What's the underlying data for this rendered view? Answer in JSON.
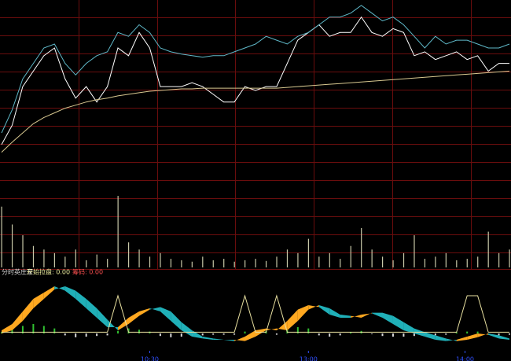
{
  "chart_data": [
    {
      "type": "line",
      "xlim": [
        0,
        240
      ],
      "ylim": [
        0,
        230
      ],
      "x": [
        0,
        5,
        10,
        15,
        20,
        25,
        30,
        35,
        40,
        45,
        50,
        55,
        60,
        65,
        70,
        75,
        80,
        85,
        90,
        95,
        100,
        105,
        110,
        115,
        120,
        125,
        130,
        135,
        140,
        145,
        150,
        155,
        160,
        165,
        170,
        175,
        180,
        185,
        190,
        195,
        200,
        205,
        210,
        215,
        220,
        225,
        230,
        235,
        240
      ],
      "series": [
        {
          "color": "#ffffff",
          "values": [
            45,
            70,
            120,
            140,
            160,
            170,
            130,
            105,
            120,
            100,
            120,
            170,
            160,
            190,
            170,
            120,
            120,
            120,
            125,
            120,
            110,
            100,
            100,
            120,
            115,
            120,
            120,
            150,
            180,
            190,
            200,
            185,
            190,
            190,
            210,
            190,
            185,
            195,
            190,
            160,
            165,
            155,
            160,
            165,
            155,
            160,
            140,
            150,
            150
          ]
        },
        {
          "color": "#5fb8c8",
          "values": [
            60,
            90,
            130,
            150,
            170,
            175,
            150,
            135,
            150,
            160,
            165,
            190,
            185,
            200,
            190,
            170,
            165,
            162,
            160,
            158,
            160,
            160,
            165,
            170,
            175,
            185,
            180,
            175,
            185,
            190,
            200,
            210,
            210,
            215,
            225,
            215,
            205,
            210,
            200,
            185,
            170,
            185,
            175,
            180,
            180,
            175,
            170,
            170,
            175
          ]
        },
        {
          "color": "#d8c890",
          "values": [
            35,
            48,
            60,
            72,
            80,
            86,
            92,
            96,
            100,
            103,
            105,
            108,
            110,
            112,
            114,
            115,
            116,
            117,
            117,
            118,
            118,
            118,
            118,
            118,
            118,
            118,
            118,
            119,
            120,
            121,
            122,
            123,
            124,
            125,
            126,
            127,
            128,
            129,
            130,
            131,
            132,
            133,
            134,
            135,
            136,
            137,
            138,
            139,
            140
          ]
        }
      ]
    },
    {
      "type": "bar",
      "xlim": [
        0,
        240
      ],
      "ylim": [
        0,
        110
      ],
      "color": "#c8c8a8",
      "x": [
        0,
        5,
        10,
        15,
        20,
        25,
        30,
        35,
        40,
        45,
        50,
        55,
        60,
        65,
        70,
        75,
        80,
        85,
        90,
        95,
        100,
        105,
        110,
        115,
        120,
        125,
        130,
        135,
        140,
        145,
        150,
        155,
        160,
        165,
        170,
        175,
        180,
        185,
        190,
        195,
        200,
        205,
        210,
        215,
        220,
        225,
        230,
        235,
        240
      ],
      "values": [
        85,
        60,
        45,
        30,
        25,
        20,
        15,
        25,
        10,
        18,
        12,
        100,
        35,
        25,
        15,
        20,
        12,
        10,
        8,
        15,
        10,
        12,
        8,
        10,
        12,
        9,
        15,
        25,
        20,
        40,
        15,
        20,
        12,
        30,
        55,
        25,
        15,
        10,
        20,
        45,
        12,
        15,
        20,
        10,
        12,
        15,
        50,
        20,
        25
      ]
    },
    {
      "type": "band",
      "title": "分时英庄家",
      "annotations": [
        "开始拉盘: 0.00",
        "筹码: 0.00"
      ],
      "xlim": [
        0,
        240
      ],
      "ylim": [
        -20,
        90
      ],
      "xticks": [
        {
          "value": 70,
          "label": "10:30"
        },
        {
          "value": 145,
          "label": "13:00"
        },
        {
          "value": 219,
          "label": "14:00"
        }
      ],
      "x": [
        0,
        5,
        10,
        15,
        20,
        25,
        30,
        35,
        40,
        45,
        50,
        55,
        60,
        65,
        70,
        75,
        80,
        85,
        90,
        95,
        100,
        105,
        110,
        115,
        120,
        125,
        130,
        135,
        140,
        145,
        150,
        155,
        160,
        165,
        170,
        175,
        180,
        185,
        190,
        195,
        200,
        205,
        210,
        215,
        220,
        225,
        230,
        235,
        240
      ],
      "up_color": "#ffa820",
      "down_color": "#20b0b8",
      "band_a": [
        5,
        15,
        35,
        55,
        65,
        75,
        68,
        55,
        40,
        25,
        10,
        10,
        25,
        35,
        40,
        35,
        20,
        5,
        -5,
        -8,
        -10,
        -10,
        -12,
        -5,
        5,
        8,
        5,
        20,
        38,
        45,
        42,
        30,
        25,
        25,
        30,
        32,
        25,
        15,
        5,
        0,
        -5,
        -10,
        -12,
        -10,
        -5,
        0,
        -2,
        -8,
        -10
      ],
      "band_b": [
        0,
        5,
        20,
        40,
        55,
        70,
        75,
        68,
        55,
        40,
        22,
        5,
        15,
        28,
        38,
        42,
        35,
        18,
        5,
        -5,
        -8,
        -10,
        -10,
        -12,
        -5,
        5,
        8,
        5,
        20,
        38,
        45,
        40,
        30,
        28,
        25,
        33,
        33,
        28,
        18,
        8,
        2,
        -3,
        -8,
        -12,
        -10,
        -6,
        0,
        -3,
        -8
      ],
      "signal": {
        "color": "#e8e0a0",
        "values": [
          2,
          2,
          2,
          2,
          2,
          2,
          2,
          2,
          2,
          2,
          2,
          60,
          2,
          2,
          2,
          2,
          2,
          2,
          2,
          2,
          2,
          2,
          2,
          60,
          2,
          2,
          60,
          2,
          2,
          2,
          2,
          2,
          2,
          2,
          2,
          2,
          2,
          2,
          2,
          2,
          2,
          2,
          2,
          2,
          60,
          60,
          2,
          2,
          2
        ]
      },
      "hist": {
        "pos_color": "#30c030",
        "neg_color": "#d8d8d8",
        "values": [
          2,
          8,
          12,
          15,
          12,
          8,
          -3,
          -6,
          -5,
          -4,
          -3,
          4,
          8,
          6,
          3,
          -4,
          -6,
          -5,
          -4,
          -3,
          -2,
          -2,
          -2,
          3,
          5,
          4,
          -2,
          6,
          10,
          8,
          -3,
          -5,
          -3,
          2,
          4,
          -1,
          -4,
          -5,
          -5,
          -4,
          -3,
          -3,
          -2,
          2,
          3,
          3,
          -2,
          -3,
          -2
        ]
      }
    }
  ]
}
